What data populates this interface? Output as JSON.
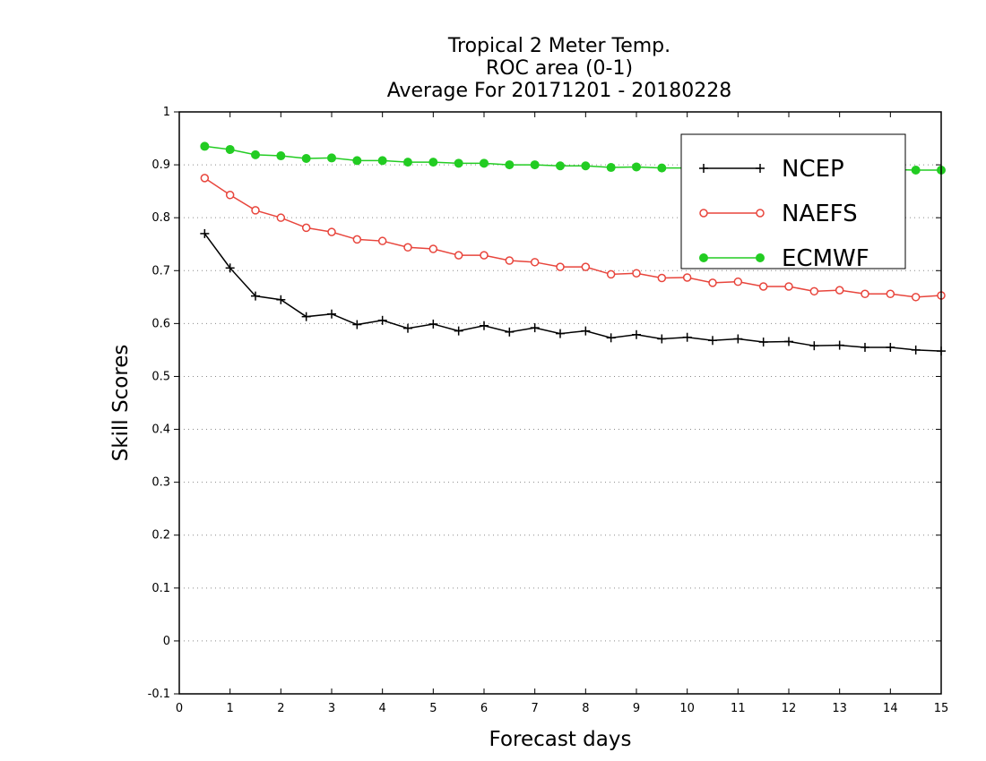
{
  "chart_data": {
    "type": "line",
    "title": [
      "Tropical 2 Meter Temp.",
      "ROC area (0-1)",
      "Average For 20171201 - 20180228"
    ],
    "xlabel": "Forecast days",
    "ylabel": "Skill Scores",
    "xlim": [
      0,
      15
    ],
    "ylim": [
      -0.1,
      1
    ],
    "xticks": [
      0,
      1,
      2,
      3,
      4,
      5,
      6,
      7,
      8,
      9,
      10,
      11,
      12,
      13,
      14,
      15
    ],
    "xtick_labels": [
      "0",
      "1",
      "2",
      "3",
      "4",
      "5",
      "6",
      "7",
      "8",
      "9",
      "10",
      "11",
      "12",
      "13",
      "14",
      "15"
    ],
    "yticks": [
      -0.1,
      0,
      0.1,
      0.2,
      0.3,
      0.4,
      0.5,
      0.6,
      0.7,
      0.8,
      0.9,
      1
    ],
    "ytick_labels": [
      "-0.1",
      "0",
      "0.1",
      "0.2",
      "0.3",
      "0.4",
      "0.5",
      "0.6",
      "0.7",
      "0.8",
      "0.9",
      "1"
    ],
    "grid": "horizontal dotted",
    "legend_position": "top-right",
    "x": [
      0.5,
      1,
      1.5,
      2,
      2.5,
      3,
      3.5,
      4,
      4.5,
      5,
      5.5,
      6,
      6.5,
      7,
      7.5,
      8,
      8.5,
      9,
      9.5,
      10,
      10.5,
      11,
      11.5,
      12,
      12.5,
      13,
      13.5,
      14,
      14.5,
      15
    ],
    "series": [
      {
        "name": "NCEP",
        "color": "#000000",
        "marker": "plus",
        "values": [
          0.77,
          0.705,
          0.652,
          0.645,
          0.613,
          0.618,
          0.598,
          0.606,
          0.591,
          0.599,
          0.586,
          0.596,
          0.584,
          0.592,
          0.581,
          0.586,
          0.573,
          0.579,
          0.571,
          0.574,
          0.568,
          0.571,
          0.565,
          0.566,
          0.558,
          0.559,
          0.555,
          0.555,
          0.55,
          0.548
        ]
      },
      {
        "name": "NAEFS",
        "color": "#e8453c",
        "marker": "open-circle",
        "values": [
          0.875,
          0.843,
          0.814,
          0.8,
          0.781,
          0.773,
          0.759,
          0.756,
          0.744,
          0.741,
          0.729,
          0.729,
          0.719,
          0.716,
          0.707,
          0.707,
          0.693,
          0.695,
          0.686,
          0.687,
          0.677,
          0.679,
          0.67,
          0.67,
          0.661,
          0.663,
          0.656,
          0.656,
          0.65,
          0.653
        ]
      },
      {
        "name": "ECMWF",
        "color": "#22cc22",
        "marker": "filled-circle",
        "values": [
          0.935,
          0.929,
          0.919,
          0.917,
          0.912,
          0.913,
          0.908,
          0.908,
          0.905,
          0.905,
          0.903,
          0.903,
          0.9,
          0.9,
          0.898,
          0.898,
          0.895,
          0.896,
          0.894,
          0.894,
          0.892,
          0.893,
          0.892,
          0.892,
          0.891,
          0.891,
          0.891,
          0.891,
          0.89,
          0.89
        ]
      }
    ]
  }
}
